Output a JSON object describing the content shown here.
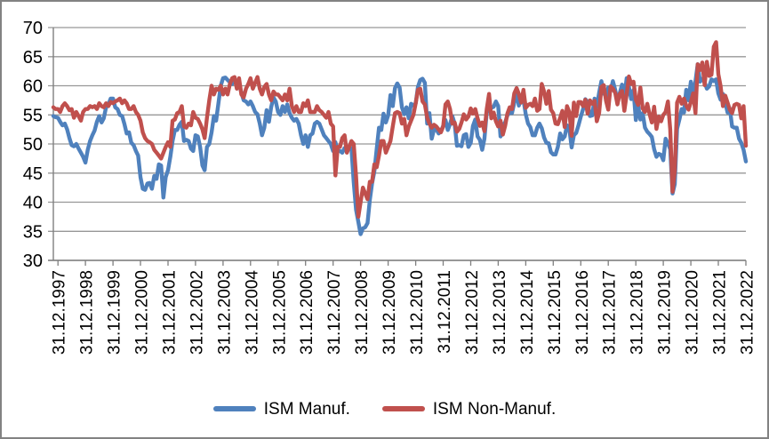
{
  "colors": {
    "grid": "#979797",
    "axis": "#7f7f7f",
    "text": "#000000",
    "frame_border": "#828282",
    "background": "#ffffff",
    "series_blue": "#4F81BD",
    "series_red": "#C0504D"
  },
  "chart_data": {
    "type": "line",
    "title": "",
    "xlabel": "",
    "ylabel": "",
    "ylim": [
      30,
      70
    ],
    "yticks": [
      30,
      35,
      40,
      45,
      50,
      55,
      60,
      65,
      70
    ],
    "grid": "horizontal",
    "legend_position": "bottom",
    "frequency": "monthly",
    "x_tick_start_index": 2,
    "x_tick_step": 12,
    "x_tick_labels": [
      "31.12.1997",
      "31.12.1998",
      "31.12.1999",
      "31.12.2000",
      "31.12.2001",
      "31.12.2002",
      "31.12.2003",
      "31.12.2004",
      "31.12.2005",
      "31.12.2006",
      "31.12.2007",
      "31.12.2008",
      "31.12.2009",
      "31.12.2010",
      "31.12.2011",
      "31.12.2012",
      "31.12.2013",
      "31.12.2014",
      "31.12.2015",
      "31.12.2016",
      "31.12.2017",
      "31.12.2018",
      "31.12.2019",
      "31.12.2020",
      "31.12.2021",
      "31.12.2022"
    ],
    "series": [
      {
        "name": "ISM Manuf.",
        "color": "#4F81BD",
        "values": [
          54.8,
          54.6,
          54.5,
          53.8,
          53.2,
          53.5,
          52.5,
          51.0,
          49.8,
          49.6,
          50.0,
          49.2,
          48.5,
          47.8,
          46.8,
          49.0,
          50.5,
          51.5,
          52.3,
          53.8,
          54.8,
          53.7,
          54.4,
          56.3,
          56.8,
          57.8,
          57.8,
          56.3,
          56.0,
          55.0,
          54.8,
          53.4,
          51.8,
          52.0,
          50.2,
          49.8,
          48.8,
          48.0,
          44.3,
          42.3,
          42.1,
          43.2,
          43.3,
          42.3,
          44.5,
          44.0,
          46.5,
          46.3,
          40.8,
          44.3,
          45.5,
          47.8,
          50.5,
          52.4,
          52.4,
          53.3,
          53.8,
          50.5,
          50.7,
          50.5,
          49.2,
          48.8,
          51.5,
          51.3,
          49.5,
          46.3,
          45.5,
          49.5,
          50.0,
          52.0,
          54.8,
          54.0,
          57.0,
          60.0,
          61.3,
          61.4,
          61.0,
          60.6,
          60.3,
          61.0,
          60.8,
          60.4,
          58.8,
          57.5,
          57.3,
          56.8,
          57.3,
          56.5,
          55.5,
          55.1,
          53.5,
          51.5,
          52.8,
          55.8,
          53.8,
          56.3,
          58.0,
          57.3,
          55.5,
          55.0,
          56.5,
          55.5,
          56.8,
          55.3,
          54.5,
          54.0,
          54.3,
          53.5,
          51.5,
          50.0,
          51.5,
          49.5,
          51.5,
          51.8,
          53.5,
          53.8,
          53.5,
          52.5,
          51.5,
          51.0,
          50.5,
          50.0,
          48.8,
          50.3,
          48.8,
          48.8,
          48.5,
          49.3,
          49.5,
          49.5,
          49.3,
          43.4,
          38.7,
          36.6,
          34.5,
          35.5,
          35.7,
          36.4,
          40.4,
          43.2,
          45.3,
          49.1,
          52.8,
          52.4,
          55.2,
          53.7,
          54.9,
          58.4,
          56.5,
          59.6,
          60.4,
          59.7,
          56.3,
          55.1,
          56.3,
          54.4,
          56.9,
          56.6,
          57.0,
          59.8,
          61.0,
          61.2,
          60.5,
          53.5,
          55.3,
          50.9,
          52.5,
          52.5,
          51.8,
          52.2,
          53.1,
          54.1,
          52.4,
          53.4,
          54.8,
          53.5,
          49.7,
          49.8,
          49.6,
          51.5,
          51.7,
          49.5,
          50.2,
          53.1,
          54.2,
          51.3,
          50.7,
          49.0,
          50.9,
          55.4,
          55.7,
          56.2,
          56.4,
          57.3,
          56.5,
          51.3,
          53.2,
          53.7,
          54.9,
          55.4,
          55.3,
          57.1,
          59.0,
          56.6,
          57.9,
          57.6,
          55.1,
          53.5,
          52.9,
          51.5,
          51.5,
          52.8,
          53.5,
          52.7,
          51.1,
          50.2,
          50.1,
          48.6,
          48.2,
          48.2,
          49.5,
          51.8,
          50.8,
          51.3,
          53.2,
          52.6,
          49.4,
          51.5,
          51.9,
          53.2,
          54.7,
          56.0,
          57.7,
          57.2,
          54.8,
          54.9,
          57.8,
          56.3,
          58.8,
          60.8,
          58.7,
          58.2,
          59.7,
          59.1,
          60.8,
          59.3,
          57.3,
          58.7,
          60.2,
          58.1,
          61.3,
          59.8,
          57.7,
          59.3,
          54.1,
          56.6,
          54.2,
          55.3,
          52.8,
          52.1,
          51.7,
          51.2,
          49.1,
          47.8,
          48.3,
          48.1,
          47.2,
          50.9,
          50.1,
          49.1,
          41.5,
          43.1,
          52.6,
          54.2,
          56.0,
          55.4,
          59.3,
          57.5,
          60.7,
          58.7,
          60.8,
          63.7,
          60.7,
          61.2,
          60.6,
          59.5,
          59.9,
          61.1,
          60.8,
          61.1,
          58.7,
          57.6,
          58.6,
          57.1,
          55.4,
          56.1,
          53.0,
          52.8,
          52.8,
          50.9,
          50.2,
          49.0,
          47.0
        ]
      },
      {
        "name": "ISM Non-Manuf.",
        "color": "#C0504D",
        "values": [
          56.3,
          56.0,
          56.0,
          55.5,
          56.5,
          57.0,
          56.5,
          55.8,
          56.0,
          54.5,
          55.5,
          54.8,
          54.0,
          55.5,
          56.0,
          56.0,
          56.5,
          56.3,
          56.5,
          56.0,
          57.0,
          56.5,
          56.3,
          57.0,
          56.5,
          57.2,
          57.0,
          57.3,
          57.5,
          57.8,
          57.0,
          57.5,
          57.0,
          56.0,
          56.0,
          56.5,
          55.5,
          55.0,
          54.0,
          52.0,
          51.0,
          50.5,
          50.3,
          50.0,
          49.0,
          48.5,
          48.0,
          47.5,
          48.5,
          49.5,
          50.3,
          49.5,
          54.0,
          54.2,
          55.3,
          55.5,
          56.5,
          53.0,
          52.8,
          53.5,
          53.2,
          55.5,
          54.5,
          54.3,
          53.5,
          52.5,
          51.0,
          54.5,
          57.5,
          60.0,
          58.5,
          59.5,
          59.3,
          60.0,
          58.5,
          59.5,
          58.5,
          60.3,
          61.3,
          61.5,
          59.5,
          61.3,
          58.5,
          58.0,
          59.5,
          60.3,
          61.3,
          59.5,
          60.5,
          61.5,
          59.5,
          58.5,
          59.8,
          60.3,
          58.5,
          57.5,
          59.0,
          58.5,
          58.5,
          58.0,
          57.5,
          58.5,
          57.5,
          59.5,
          56.5,
          55.5,
          56.5,
          55.5,
          55.5,
          57.0,
          56.5,
          57.5,
          55.5,
          55.5,
          55.5,
          56.5,
          55.8,
          55.5,
          55.0,
          54.5,
          55.5,
          53.5,
          53.0,
          44.6,
          49.5,
          49.5,
          51.0,
          51.5,
          48.5,
          49.5,
          50.5,
          50.0,
          44.5,
          37.5,
          40.0,
          42.5,
          41.5,
          40.5,
          43.5,
          43.5,
          46.5,
          46.0,
          48.0,
          50.5,
          50.5,
          48.5,
          49.5,
          50.5,
          53.0,
          55.3,
          55.5,
          55.3,
          53.5,
          54.3,
          51.5,
          53.0,
          54.0,
          55.0,
          57.0,
          59.3,
          59.5,
          57.3,
          56.8,
          54.5,
          53.5,
          52.8,
          53.3,
          53.0,
          52.5,
          52.0,
          53.0,
          56.8,
          57.3,
          56.0,
          53.5,
          53.7,
          52.1,
          52.6,
          53.7,
          55.1,
          54.2,
          54.7,
          56.1,
          55.2,
          56.0,
          54.4,
          53.1,
          53.7,
          52.2,
          56.0,
          58.6,
          54.4,
          55.4,
          53.9,
          53.0,
          54.0,
          51.6,
          53.1,
          55.2,
          56.3,
          56.0,
          58.7,
          59.6,
          58.6,
          57.1,
          59.3,
          56.2,
          56.7,
          56.9,
          56.5,
          57.8,
          55.7,
          56.0,
          60.3,
          59.0,
          56.9,
          59.1,
          55.9,
          55.3,
          53.5,
          53.4,
          54.5,
          55.7,
          52.9,
          56.5,
          55.5,
          51.4,
          57.1,
          54.8,
          57.2,
          57.2,
          56.5,
          57.6,
          55.2,
          57.5,
          56.9,
          57.4,
          53.9,
          55.3,
          59.8,
          60.1,
          57.4,
          55.9,
          59.9,
          59.5,
          58.8,
          56.8,
          58.6,
          59.1,
          55.7,
          58.5,
          61.6,
          60.3,
          60.7,
          57.6,
          56.7,
          59.7,
          56.1,
          55.5,
          56.9,
          55.1,
          53.7,
          56.4,
          52.6,
          54.7,
          53.9,
          55.0,
          55.5,
          57.3,
          52.5,
          41.8,
          45.4,
          57.1,
          58.1,
          56.9,
          57.8,
          56.6,
          55.9,
          57.2,
          58.7,
          55.3,
          63.7,
          62.7,
          64.0,
          60.1,
          64.1,
          61.7,
          61.9,
          66.7,
          67.5,
          62.0,
          59.9,
          56.5,
          58.3,
          57.1,
          55.9,
          55.3,
          56.7,
          56.9,
          56.7,
          54.4,
          56.5,
          49.7
        ]
      }
    ]
  }
}
